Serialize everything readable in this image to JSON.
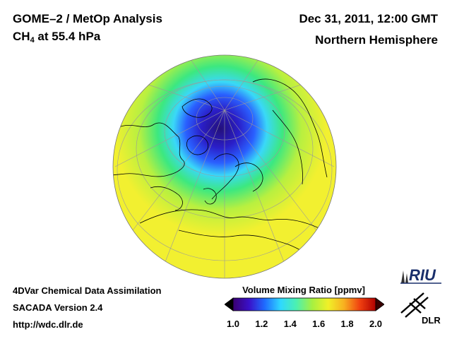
{
  "header": {
    "title_line1": "GOME–2 / MetOp Analysis",
    "species": "CH",
    "species_sub": "4",
    "level": " at 55.4 hPa",
    "date": "Dec 31, 2011, 12:00 GMT",
    "region": "Northern Hemisphere"
  },
  "footer": {
    "line1": "4DVar Chemical Data Assimilation",
    "line2": "SACADA Version 2.4",
    "line3": "http://wdc.dlr.de"
  },
  "colorbar": {
    "title": "Volume Mixing Ratio [ppmv]",
    "ticks": [
      "1.0",
      "1.2",
      "1.4",
      "1.6",
      "1.8",
      "2.0"
    ],
    "min": 1.0,
    "max": 2.0,
    "colors": [
      "#000000",
      "#3a0070",
      "#3a10c8",
      "#1f6cff",
      "#2fd8ff",
      "#4cf0b0",
      "#a8f040",
      "#f0f028",
      "#f8b020",
      "#f04010",
      "#b00000",
      "#3a0000"
    ]
  },
  "map": {
    "projection": "orthographic",
    "center": "North Pole",
    "field_colors": {
      "outer": "#f2f030",
      "mid": "#b8f040",
      "green": "#3ce880",
      "cyan": "#3ad8f8",
      "blue": "#2a60ff",
      "indigo": "#2a1ec8",
      "core": "#24107a"
    }
  },
  "logos": {
    "riu": "RIU",
    "dlr": "DLR"
  }
}
